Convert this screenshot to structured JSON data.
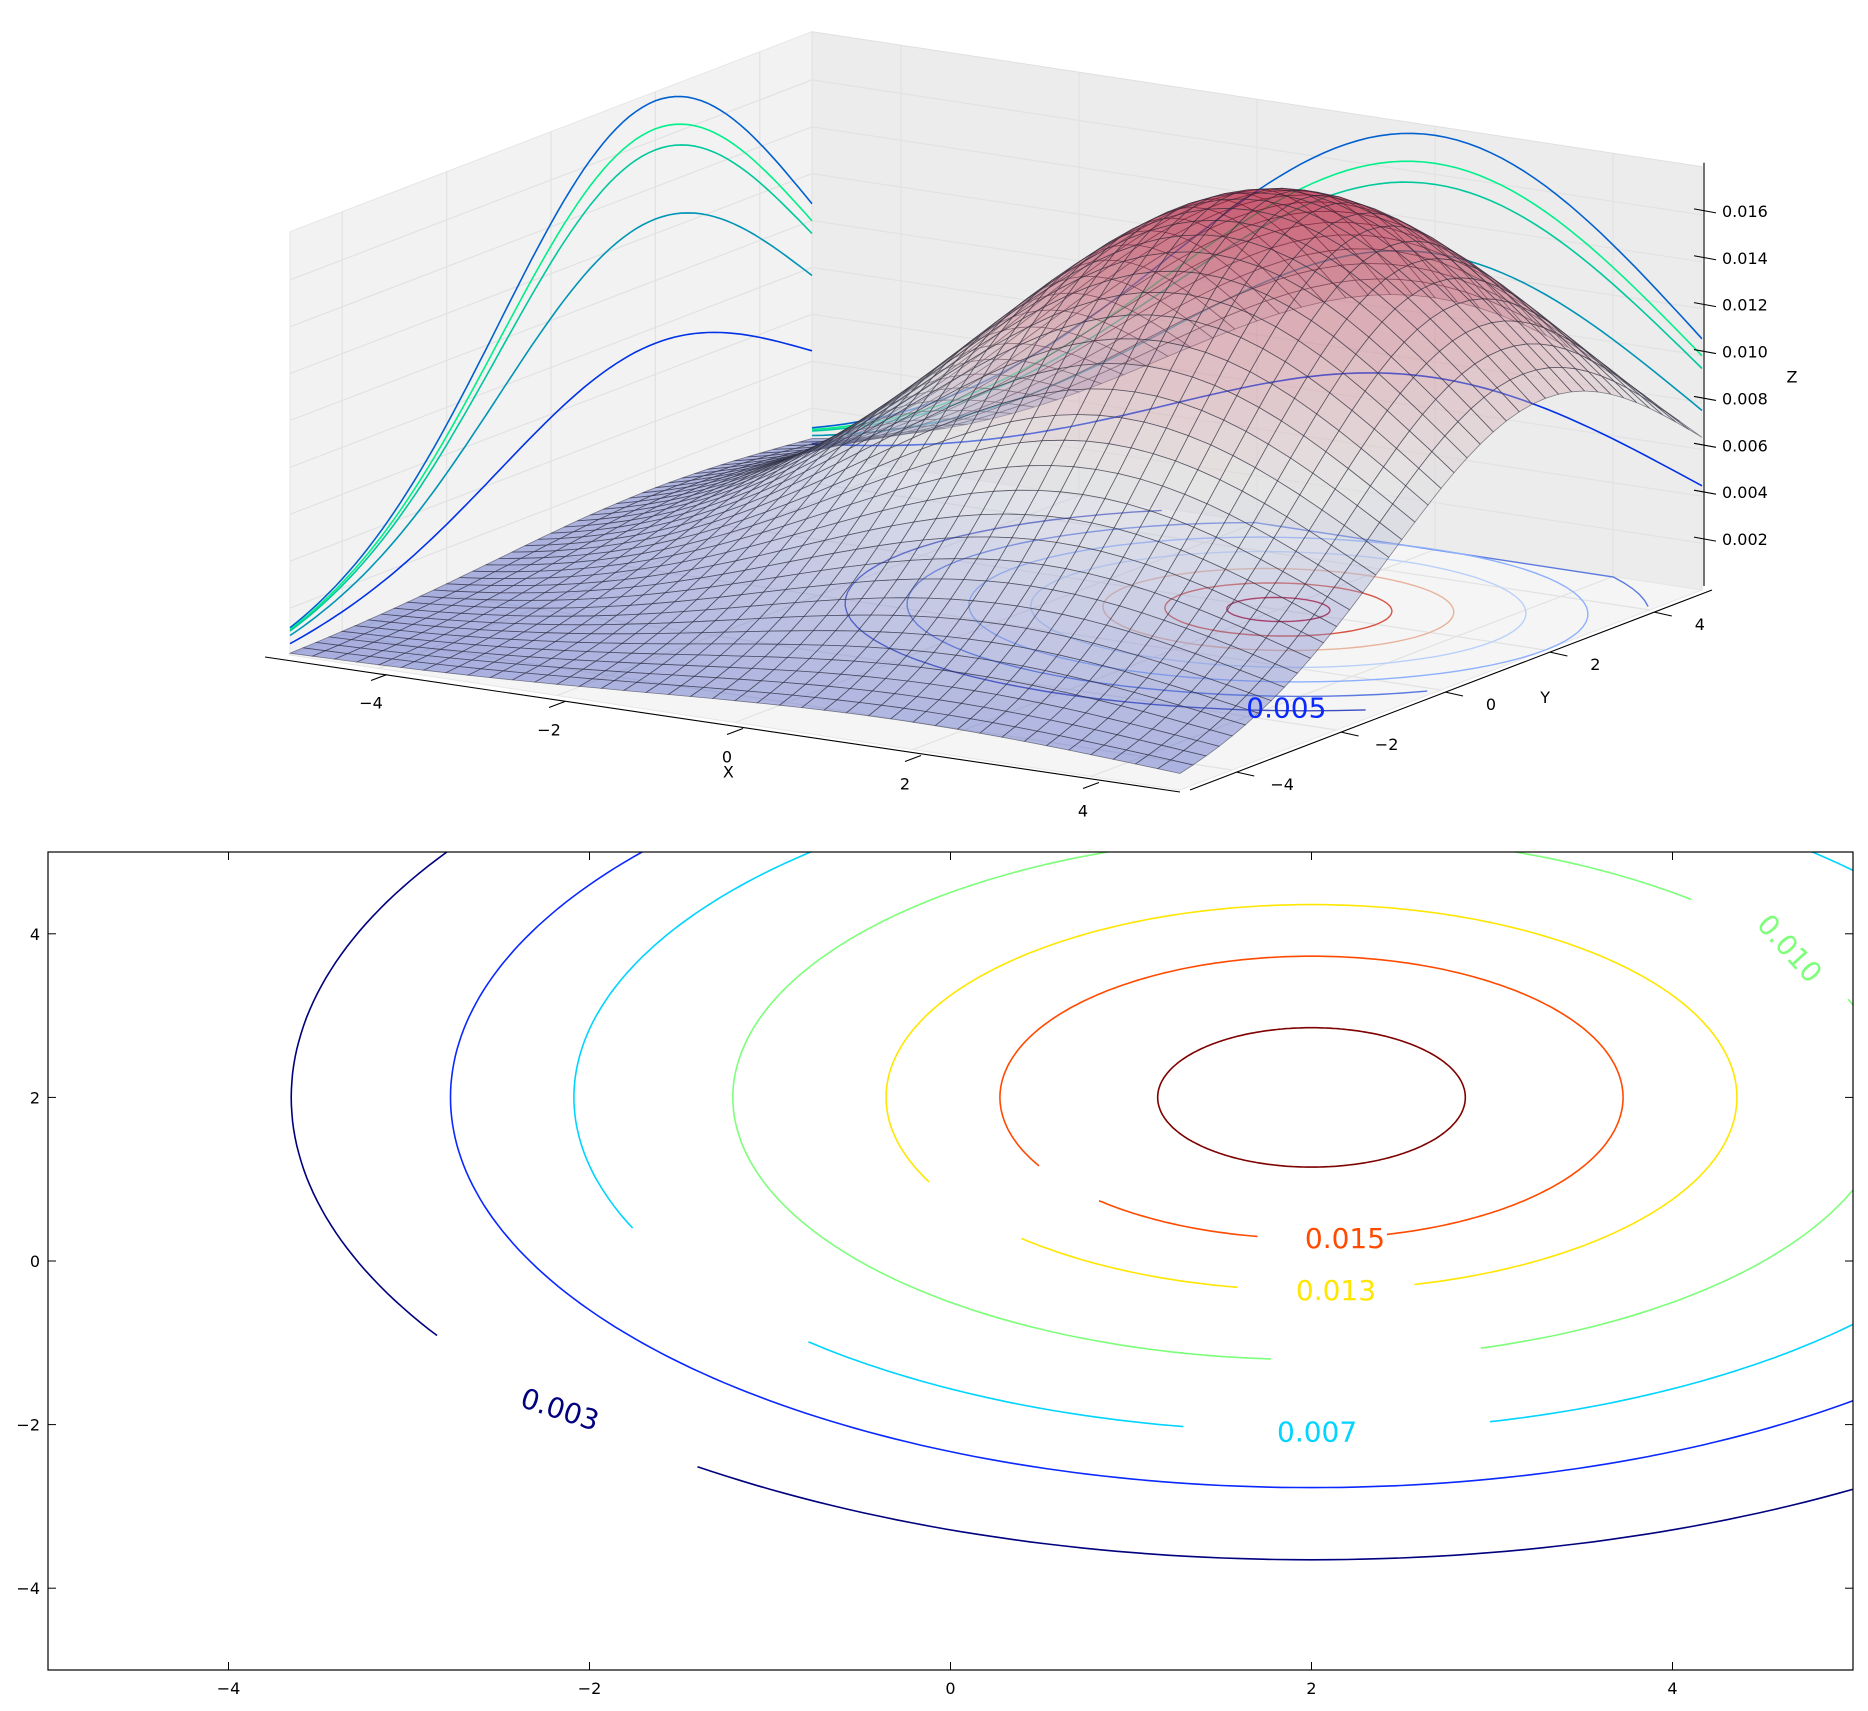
{
  "chart_data": [
    {
      "type": "surface",
      "function": "2D Gaussian peak",
      "x": {
        "label": "X",
        "range": [
          -5,
          5
        ],
        "ticks": [
          "−4",
          "−2",
          "0",
          "2",
          "4"
        ],
        "tick_values": [
          -4,
          -2,
          0,
          2,
          4
        ]
      },
      "y": {
        "label": "Y",
        "range": [
          -5,
          5
        ],
        "ticks": [
          "−4",
          "−2",
          "0",
          "2",
          "4"
        ],
        "tick_values": [
          -4,
          -2,
          0,
          2,
          4
        ]
      },
      "z": {
        "label": "Z",
        "range": [
          0,
          0.0177
        ],
        "ticks": [
          "0.002",
          "0.004",
          "0.006",
          "0.008",
          "0.010",
          "0.012",
          "0.014",
          "0.016"
        ],
        "tick_values": [
          0.002,
          0.004,
          0.006,
          0.008,
          0.01,
          0.012,
          0.014,
          0.016
        ]
      },
      "peak": {
        "x": 2,
        "y": 2,
        "z": 0.0177
      },
      "sigma": 3,
      "surface_colormap": "coolwarm",
      "projection_colormap": "winter",
      "grid": true
    },
    {
      "type": "contour",
      "x": {
        "range": [
          -5,
          5
        ],
        "ticks": [
          "−4",
          "−2",
          "0",
          "2",
          "4"
        ],
        "tick_values": [
          -4,
          -2,
          0,
          2,
          4
        ]
      },
      "y": {
        "range": [
          -5,
          5
        ],
        "ticks": [
          "−4",
          "−2",
          "0",
          "2",
          "4"
        ],
        "tick_values": [
          -4,
          -2,
          0,
          2,
          4
        ]
      },
      "center": {
        "x": 2,
        "y": 2
      },
      "levels": [
        {
          "value": 0.003,
          "label": "0.003",
          "color": "#00007f"
        },
        {
          "value": 0.005,
          "label": "0.005",
          "color": "#0a28ff"
        },
        {
          "value": 0.007,
          "label": "0.007",
          "color": "#00d4ff"
        },
        {
          "value": 0.01,
          "label": "0.010",
          "color": "#7dff7a"
        },
        {
          "value": 0.013,
          "label": "0.013",
          "color": "#ffe600"
        },
        {
          "value": 0.015,
          "label": "0.015",
          "color": "#ff4a00"
        },
        {
          "value": 0.017,
          "label": "",
          "color": "#7f0000"
        }
      ],
      "colormap": "jet",
      "grid": false
    }
  ]
}
